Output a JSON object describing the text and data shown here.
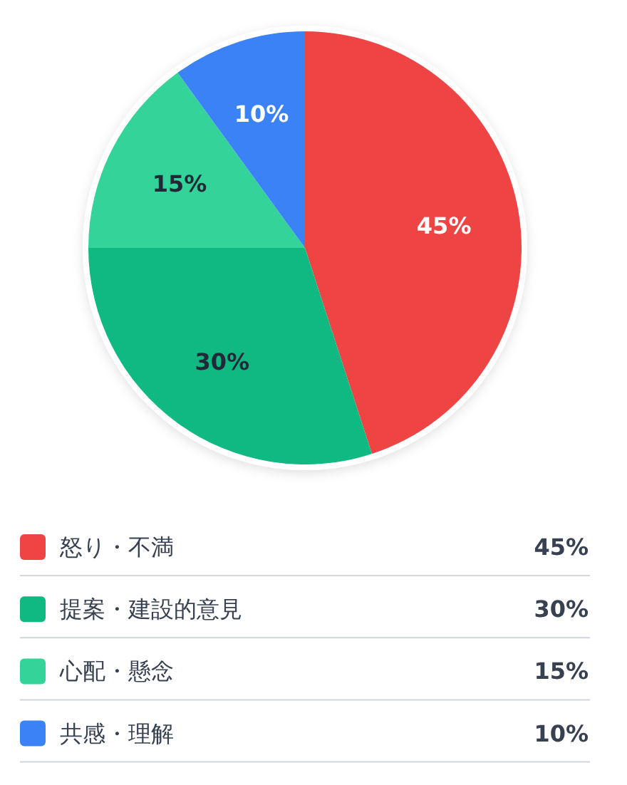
{
  "chart_data": {
    "type": "pie",
    "categories": [
      "怒り・不満",
      "提案・建設的意見",
      "心配・懸念",
      "共感・理解"
    ],
    "values": [
      45,
      30,
      15,
      10
    ],
    "colors": [
      "#ef4444",
      "#10b981",
      "#34d399",
      "#3b82f6"
    ],
    "value_labels": [
      "45%",
      "30%",
      "15%",
      "10%"
    ],
    "legend": "bottom"
  }
}
